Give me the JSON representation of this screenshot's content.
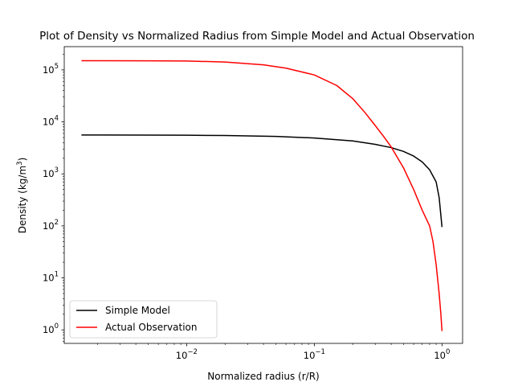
{
  "chart_data": {
    "type": "line",
    "title": "Plot of Density vs Normalized Radius from Simple Model and Actual Observation",
    "xlabel": "Normalized radius (r/R)",
    "ylabel": {
      "prefix": "Density (kg/m",
      "sup": "3",
      "suffix": ")"
    },
    "xscale": "log",
    "yscale": "log",
    "xlim": [
      0.0011,
      1.45
    ],
    "ylim": [
      0.55,
      280000
    ],
    "x_ticks": [
      {
        "value": 0.01,
        "base": "10",
        "exp": "−2"
      },
      {
        "value": 0.1,
        "base": "10",
        "exp": "−1"
      },
      {
        "value": 1,
        "base": "10",
        "exp": "0"
      }
    ],
    "y_ticks": [
      {
        "value": 1,
        "base": "10",
        "exp": "0"
      },
      {
        "value": 10,
        "base": "10",
        "exp": "1"
      },
      {
        "value": 100,
        "base": "10",
        "exp": "2"
      },
      {
        "value": 1000,
        "base": "10",
        "exp": "3"
      },
      {
        "value": 10000,
        "base": "10",
        "exp": "4"
      },
      {
        "value": 100000,
        "base": "10",
        "exp": "5"
      }
    ],
    "grid": false,
    "legend_position": "lower-left",
    "series": [
      {
        "name": "Simple Model",
        "color": "#000000",
        "points": [
          [
            0.0015,
            5600
          ],
          [
            0.005,
            5580
          ],
          [
            0.01,
            5540
          ],
          [
            0.02,
            5470
          ],
          [
            0.05,
            5250
          ],
          [
            0.1,
            4900
          ],
          [
            0.2,
            4300
          ],
          [
            0.3,
            3700
          ],
          [
            0.4,
            3200
          ],
          [
            0.5,
            2700
          ],
          [
            0.6,
            2200
          ],
          [
            0.7,
            1700
          ],
          [
            0.8,
            1200
          ],
          [
            0.9,
            700
          ],
          [
            0.95,
            350
          ],
          [
            1.0,
            95
          ]
        ]
      },
      {
        "name": "Actual Observation",
        "color": "#ff0000",
        "points": [
          [
            0.0015,
            150000
          ],
          [
            0.005,
            149500
          ],
          [
            0.01,
            148000
          ],
          [
            0.02,
            142000
          ],
          [
            0.04,
            125000
          ],
          [
            0.06,
            108000
          ],
          [
            0.1,
            80000
          ],
          [
            0.15,
            50000
          ],
          [
            0.2,
            28000
          ],
          [
            0.25,
            15000
          ],
          [
            0.3,
            8500
          ],
          [
            0.35,
            5200
          ],
          [
            0.4,
            3300
          ],
          [
            0.5,
            1300
          ],
          [
            0.6,
            500
          ],
          [
            0.7,
            200
          ],
          [
            0.8,
            100
          ],
          [
            0.85,
            50
          ],
          [
            0.9,
            18
          ],
          [
            0.95,
            5
          ],
          [
            0.98,
            2
          ],
          [
            1.0,
            0.95
          ]
        ]
      }
    ]
  }
}
